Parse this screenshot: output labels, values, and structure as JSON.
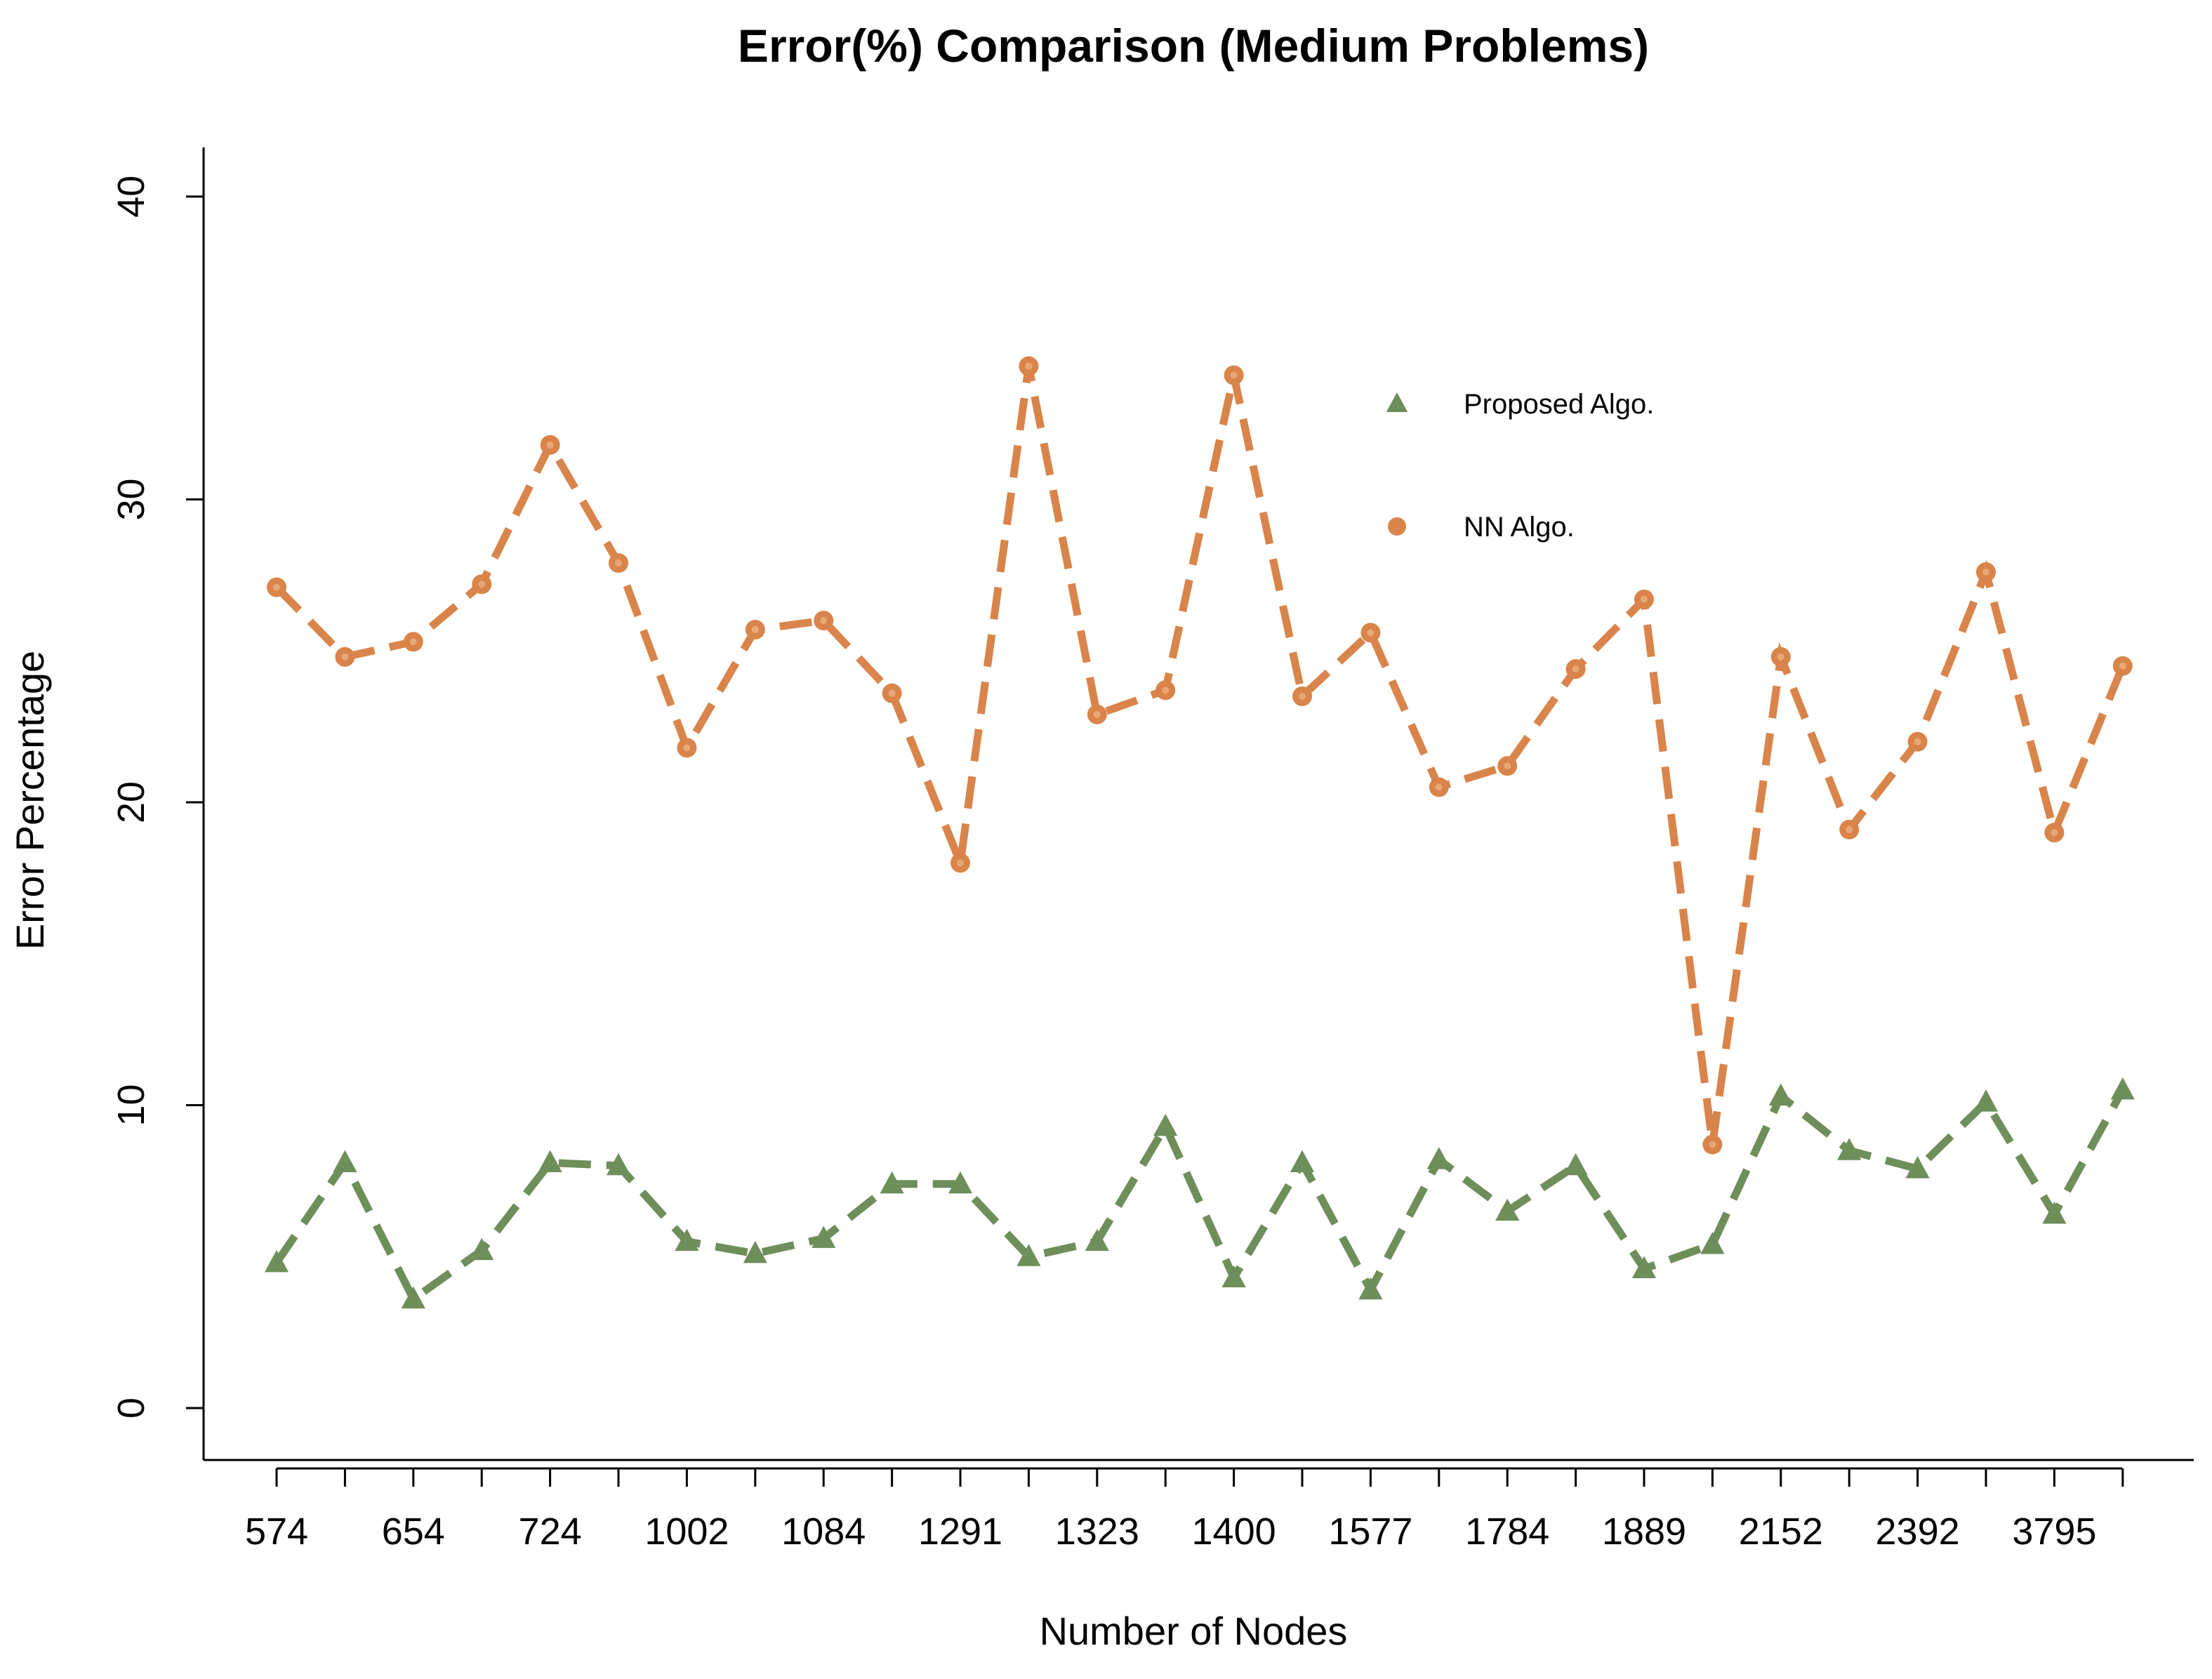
{
  "chart_data": {
    "type": "line",
    "title": "Error(%) Comparison (Medium Problems)",
    "xlabel": "Number of Nodes",
    "ylabel": "Error Percentage",
    "ylim": [
      0,
      40
    ],
    "yticks": [
      0,
      10,
      20,
      30,
      40
    ],
    "x_positions": 28,
    "x_tick_labels": [
      {
        "index": 0,
        "label": "574"
      },
      {
        "index": 2,
        "label": "654"
      },
      {
        "index": 4,
        "label": "724"
      },
      {
        "index": 6,
        "label": "1002"
      },
      {
        "index": 8,
        "label": "1084"
      },
      {
        "index": 10,
        "label": "1291"
      },
      {
        "index": 12,
        "label": "1323"
      },
      {
        "index": 14,
        "label": "1400"
      },
      {
        "index": 16,
        "label": "1577"
      },
      {
        "index": 18,
        "label": "1784"
      },
      {
        "index": 20,
        "label": "1889"
      },
      {
        "index": 22,
        "label": "2152"
      },
      {
        "index": 24,
        "label": "2392"
      },
      {
        "index": 26,
        "label": "3795"
      }
    ],
    "series": [
      {
        "name": "Proposed Algo.",
        "color": "#6e8e5a",
        "marker": "triangle",
        "values": [
          4.8,
          8.1,
          3.6,
          5.2,
          8.1,
          8.0,
          5.5,
          5.1,
          5.6,
          7.4,
          7.4,
          5.0,
          5.5,
          9.3,
          4.3,
          8.1,
          3.9,
          8.2,
          6.5,
          8.0,
          4.6,
          5.4,
          10.3,
          8.5,
          7.9,
          10.1,
          6.4,
          10.5
        ]
      },
      {
        "name": "NN Algo.",
        "color": "#d9844a",
        "marker": "circle",
        "values": [
          27.1,
          24.8,
          25.3,
          27.2,
          31.8,
          27.9,
          21.8,
          25.7,
          26.0,
          23.6,
          18.0,
          34.4,
          22.9,
          23.7,
          34.1,
          23.5,
          25.6,
          20.5,
          21.2,
          24.4,
          26.7,
          8.7,
          24.8,
          19.1,
          22.0,
          27.6,
          19.0,
          24.5
        ]
      }
    ],
    "legend": {
      "position": "top-right",
      "entries": [
        {
          "label": "Proposed Algo.",
          "marker": "triangle",
          "color": "#6e8e5a"
        },
        {
          "label": "NN Algo.",
          "marker": "circle",
          "color": "#d9844a"
        }
      ]
    }
  }
}
